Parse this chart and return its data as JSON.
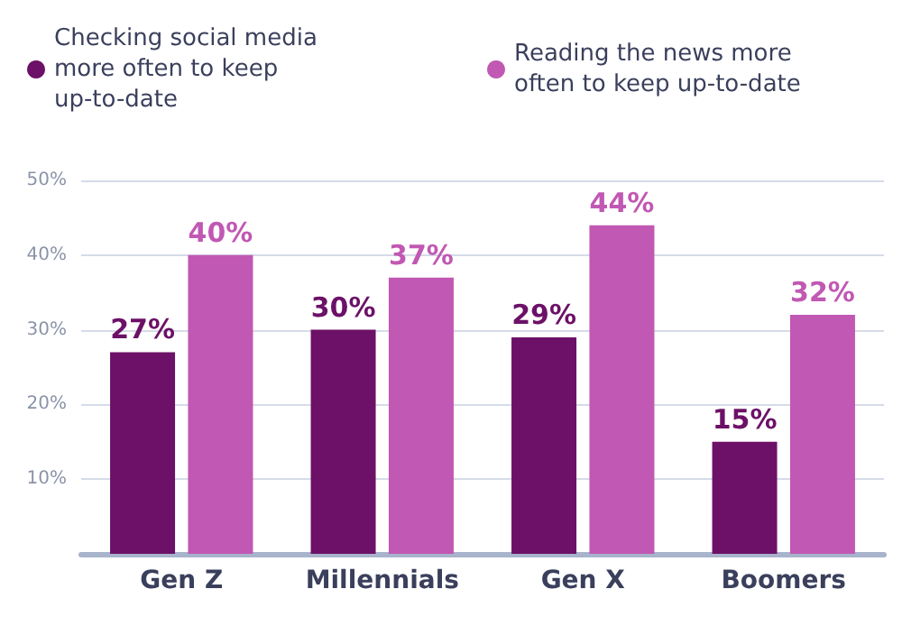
{
  "chart_data": {
    "type": "bar",
    "categories": [
      "Gen Z",
      "Millennials",
      "Gen X",
      "Boomers"
    ],
    "series": [
      {
        "name": "Checking social media more often to keep up-to-date",
        "color": "#6c1167",
        "values": [
          27,
          30,
          29,
          15
        ],
        "value_labels": [
          "27%",
          "30%",
          "29%",
          "15%"
        ]
      },
      {
        "name": "Reading the news more often to keep up-to-date",
        "color": "#c158b3",
        "values": [
          40,
          37,
          44,
          32
        ],
        "value_labels": [
          "40%",
          "37%",
          "44%",
          "32%"
        ]
      }
    ],
    "ylim": [
      0,
      50
    ],
    "yticks": [
      {
        "value": 0,
        "label": null
      },
      {
        "value": 10,
        "label": "10%"
      },
      {
        "value": 20,
        "label": "20%"
      },
      {
        "value": 30,
        "label": "30%"
      },
      {
        "value": 40,
        "label": "40%"
      },
      {
        "value": 50,
        "label": "50%"
      }
    ],
    "grid": "y",
    "legend": "top"
  }
}
